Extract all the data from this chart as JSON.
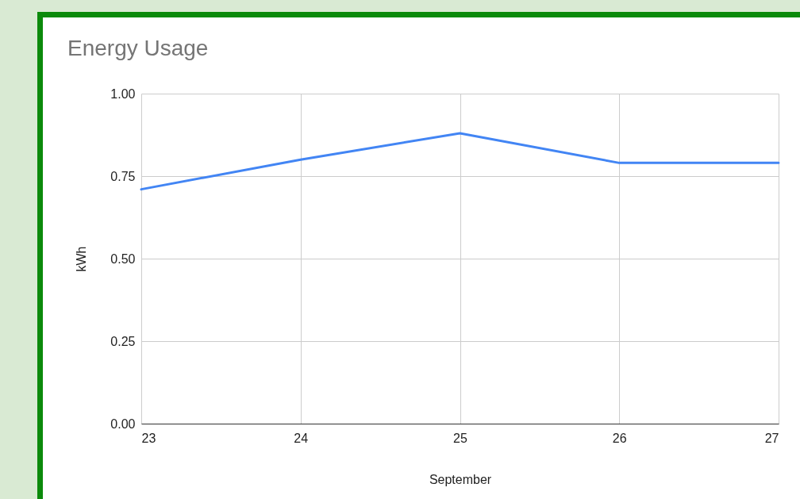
{
  "chart_data": {
    "type": "line",
    "title": "Energy Usage",
    "xlabel": "September",
    "ylabel": "kWh",
    "x": [
      23,
      24,
      25,
      26,
      27
    ],
    "series": [
      {
        "color": "#4285f4",
        "values": [
          0.71,
          0.8,
          0.88,
          0.79,
          0.79
        ]
      }
    ],
    "xlim": [
      23,
      27
    ],
    "ylim": [
      0,
      1
    ],
    "xticks": [
      23,
      24,
      25,
      26,
      27
    ],
    "yticks": [
      {
        "value": 0,
        "label": "0.00"
      },
      {
        "value": 0.25,
        "label": "0.25"
      },
      {
        "value": 0.5,
        "label": "0.50"
      },
      {
        "value": 0.75,
        "label": "0.75"
      },
      {
        "value": 1,
        "label": "1.00"
      }
    ],
    "grid": true
  }
}
